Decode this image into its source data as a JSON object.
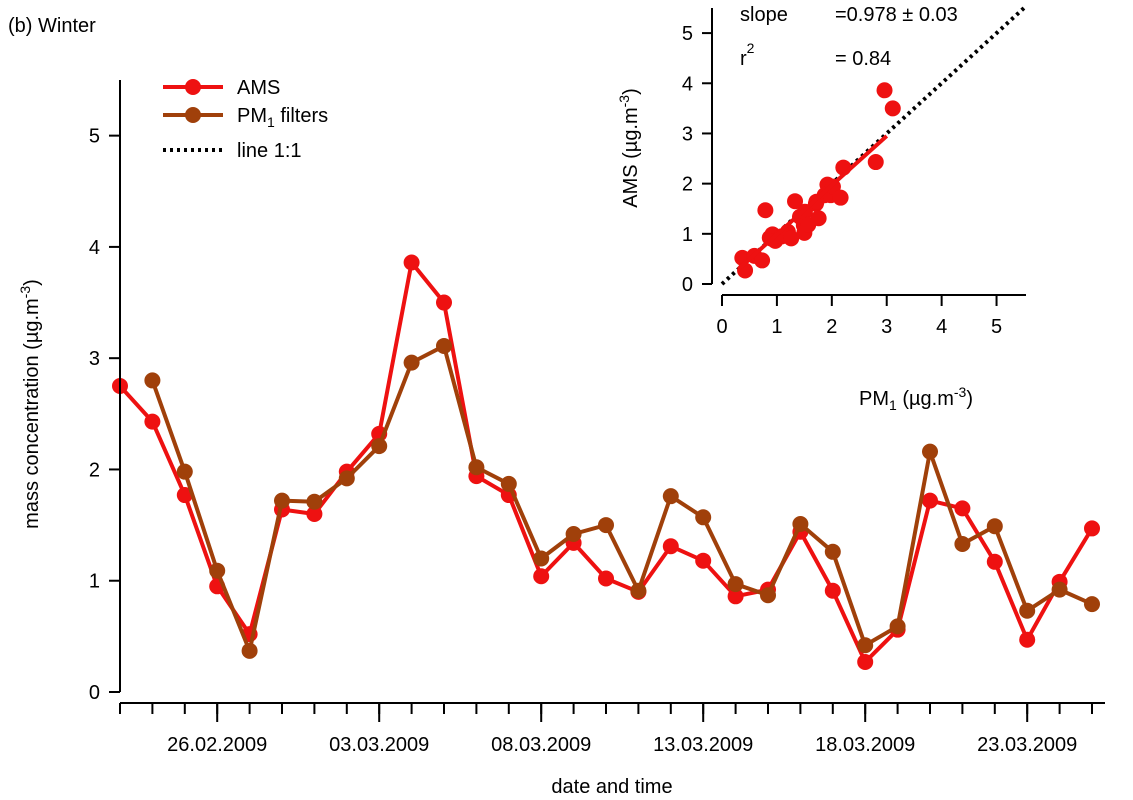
{
  "panel_label": "(b) Winter",
  "colors": {
    "ams": "#ee1111",
    "filters": "#a0400a",
    "axis": "#000000",
    "one_to_one": "#000000"
  },
  "chart_data": [
    {
      "type": "line",
      "xlabel": "date and time",
      "ylabel": "mass concentration (µg.m",
      "ylabel_sup": "-3",
      "ylabel_close": ")",
      "ylim": [
        0,
        5.5
      ],
      "yticks": [
        0,
        1,
        2,
        3,
        4,
        5
      ],
      "xlim": [
        "2009-02-23",
        "2009-03-28"
      ],
      "xtick_labels": [
        "26.02.2009",
        "03.03.2009",
        "08.03.2009",
        "13.03.2009",
        "18.03.2009",
        "23.03.2009"
      ],
      "xtick_dates": [
        "2009-02-26",
        "2009-03-03",
        "2009-03-08",
        "2009-03-13",
        "2009-03-18",
        "2009-03-23"
      ],
      "legend": {
        "position": "top-left",
        "items": [
          {
            "label": "AMS",
            "sub": "",
            "tail": "",
            "style": "line-marker",
            "color_key": "ams"
          },
          {
            "label": "PM",
            "sub": "1",
            "tail": " filters",
            "style": "line-marker",
            "color_key": "filters"
          },
          {
            "label": "line 1:1",
            "sub": "",
            "tail": "",
            "style": "dotted",
            "color_key": "one_to_one"
          }
        ]
      },
      "series": [
        {
          "name": "AMS",
          "color_key": "ams",
          "points": [
            [
              "2009-02-23",
              2.75
            ],
            [
              "2009-02-24",
              2.43
            ],
            [
              "2009-02-25",
              1.77
            ],
            [
              "2009-02-26",
              0.95
            ],
            [
              "2009-02-27",
              0.52
            ],
            [
              "2009-02-28",
              1.64
            ],
            [
              "2009-03-01",
              1.6
            ],
            [
              "2009-03-02",
              1.98
            ],
            [
              "2009-03-03",
              2.32
            ],
            [
              "2009-03-04",
              3.86
            ],
            [
              "2009-03-05",
              3.5
            ],
            [
              "2009-03-06",
              1.94
            ],
            [
              "2009-03-07",
              1.77
            ],
            [
              "2009-03-08",
              1.04
            ],
            [
              "2009-03-09",
              1.34
            ],
            [
              "2009-03-10",
              1.02
            ],
            [
              "2009-03-11",
              0.9
            ],
            [
              "2009-03-12",
              1.31
            ],
            [
              "2009-03-13",
              1.18
            ],
            [
              "2009-03-14",
              0.86
            ],
            [
              "2009-03-15",
              0.92
            ],
            [
              "2009-03-16",
              1.44
            ],
            [
              "2009-03-17",
              0.91
            ],
            [
              "2009-03-18",
              0.27
            ],
            [
              "2009-03-19",
              0.56
            ],
            [
              "2009-03-20",
              1.72
            ],
            [
              "2009-03-21",
              1.65
            ],
            [
              "2009-03-22",
              1.17
            ],
            [
              "2009-03-23",
              0.47
            ],
            [
              "2009-03-24",
              0.99
            ],
            [
              "2009-03-25",
              1.47
            ]
          ]
        },
        {
          "name": "PM1 filters",
          "color_key": "filters",
          "points": [
            [
              "2009-02-24",
              2.8
            ],
            [
              "2009-02-25",
              1.98
            ],
            [
              "2009-02-26",
              1.09
            ],
            [
              "2009-02-27",
              0.37
            ],
            [
              "2009-02-28",
              1.72
            ],
            [
              "2009-03-01",
              1.71
            ],
            [
              "2009-03-02",
              1.92
            ],
            [
              "2009-03-03",
              2.21
            ],
            [
              "2009-03-04",
              2.96
            ],
            [
              "2009-03-05",
              3.11
            ],
            [
              "2009-03-06",
              2.02
            ],
            [
              "2009-03-07",
              1.87
            ],
            [
              "2009-03-08",
              1.2
            ],
            [
              "2009-03-09",
              1.42
            ],
            [
              "2009-03-10",
              1.5
            ],
            [
              "2009-03-11",
              0.91
            ],
            [
              "2009-03-12",
              1.76
            ],
            [
              "2009-03-13",
              1.57
            ],
            [
              "2009-03-14",
              0.97
            ],
            [
              "2009-03-15",
              0.87
            ],
            [
              "2009-03-16",
              1.51
            ],
            [
              "2009-03-17",
              1.26
            ],
            [
              "2009-03-18",
              0.42
            ],
            [
              "2009-03-19",
              0.59
            ],
            [
              "2009-03-20",
              2.16
            ],
            [
              "2009-03-21",
              1.33
            ],
            [
              "2009-03-22",
              1.49
            ],
            [
              "2009-03-23",
              0.73
            ],
            [
              "2009-03-24",
              0.92
            ],
            [
              "2009-03-25",
              0.79
            ]
          ]
        }
      ]
    },
    {
      "type": "scatter",
      "xlabel": "PM",
      "xlabel_sub": "1",
      "xlabel_tail": " (µg.m",
      "xlabel_sup": "-3",
      "xlabel_close": ")",
      "ylabel": "AMS (µg.m",
      "ylabel_sup": "-3",
      "ylabel_close": ")",
      "xlim": [
        0,
        5.5
      ],
      "ylim": [
        0,
        5.5
      ],
      "xticks": [
        0,
        1,
        2,
        3,
        4,
        5
      ],
      "yticks": [
        0,
        1,
        2,
        3,
        4,
        5
      ],
      "annotations": {
        "slope_label": "slope",
        "slope_value": "=0.978 ± 0.03",
        "r2_label": "r",
        "r2_sup": "2",
        "r2_value": "= 0.84"
      },
      "fit_line": {
        "x": [
          0.3,
          3.0
        ],
        "y": [
          0.3,
          2.95
        ]
      },
      "one_to_one": {
        "x": [
          0,
          5.5
        ],
        "y": [
          0,
          5.5
        ]
      },
      "points": [
        [
          0.37,
          0.52
        ],
        [
          0.42,
          0.27
        ],
        [
          0.59,
          0.56
        ],
        [
          0.73,
          0.47
        ],
        [
          0.79,
          1.47
        ],
        [
          0.87,
          0.92
        ],
        [
          0.91,
          0.9
        ],
        [
          0.92,
          0.99
        ],
        [
          0.97,
          0.86
        ],
        [
          1.09,
          0.95
        ],
        [
          1.2,
          1.04
        ],
        [
          1.26,
          0.91
        ],
        [
          1.33,
          1.65
        ],
        [
          1.42,
          1.34
        ],
        [
          1.49,
          1.17
        ],
        [
          1.5,
          1.02
        ],
        [
          1.51,
          1.44
        ],
        [
          1.57,
          1.18
        ],
        [
          1.71,
          1.6
        ],
        [
          1.72,
          1.64
        ],
        [
          1.76,
          1.31
        ],
        [
          1.87,
          1.77
        ],
        [
          1.92,
          1.98
        ],
        [
          1.98,
          1.77
        ],
        [
          2.02,
          1.94
        ],
        [
          2.16,
          1.72
        ],
        [
          2.21,
          2.32
        ],
        [
          2.8,
          2.43
        ],
        [
          2.96,
          3.86
        ],
        [
          3.11,
          3.5
        ]
      ]
    }
  ]
}
